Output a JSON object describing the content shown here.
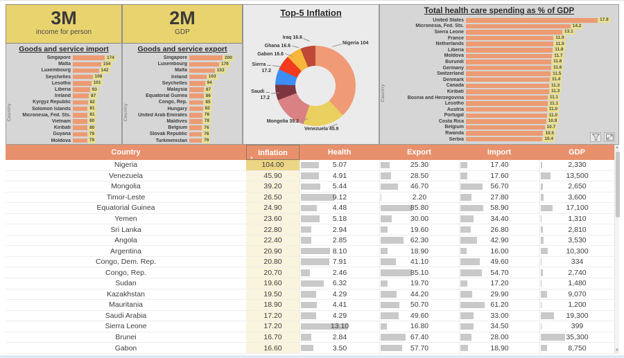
{
  "cards": [
    {
      "value": "3M",
      "label": "income for person"
    },
    {
      "value": "2M",
      "label": "GDP"
    }
  ],
  "chart_data": [
    {
      "id": "goods-import",
      "type": "bar",
      "title": "Goods and service import",
      "ylabel": "Country",
      "categories": [
        "Singapore",
        "Malta",
        "Luxembourg",
        "Seychelles",
        "Lesotho",
        "Liberia",
        "Ireland",
        "Kyrgyz Republic",
        "Solomon Islands",
        "Micronesia, Fed. Sts.",
        "Vietnam",
        "Kiribati",
        "Guyana",
        "Moldova"
      ],
      "values": [
        174,
        154,
        142,
        108,
        101,
        93,
        87,
        82,
        81,
        81,
        80,
        80,
        79,
        79
      ],
      "xmax": 174,
      "bar_color": "#ec9b72"
    },
    {
      "id": "goods-export",
      "type": "bar",
      "title": "Goods and service export",
      "ylabel": "Country",
      "categories": [
        "Singapore",
        "Luxembourg",
        "Malta",
        "Ireland",
        "Seychelles",
        "Malaysia",
        "Equatorial Guinea",
        "Congo, Rep.",
        "Hungary",
        "United Arab Emirates",
        "Maldives",
        "Belgium",
        "Slovak Republic",
        "Turkmenistan"
      ],
      "values": [
        200,
        179,
        153,
        103,
        94,
        87,
        86,
        85,
        82,
        78,
        78,
        76,
        76,
        76
      ],
      "xmax": 200,
      "bar_color": "#ec9b72"
    },
    {
      "id": "top5-inflation",
      "type": "pie",
      "title": "Top-5 Inflation",
      "slices": [
        {
          "label": "Nigeria",
          "value": 104,
          "color": "#f09b75"
        },
        {
          "label": "Venezuela",
          "value": 45.9,
          "color": "#ead05e"
        },
        {
          "label": "Mongolia",
          "value": 39.2,
          "color": "#da8183"
        },
        {
          "label": "Saudi",
          "value": 17.2,
          "color": "#7d3540"
        },
        {
          "label": "Sierra",
          "value": 17.2,
          "color": "#3d8df2"
        },
        {
          "label": "Gabon",
          "value": 16.6,
          "color": "#f13a1e"
        },
        {
          "label": "Ghana",
          "value": 16.6,
          "color": "#f6b73a"
        },
        {
          "label": "Iraq",
          "value": 16.6,
          "color": "#bf4936"
        }
      ],
      "callouts": [
        "Iraq 16.6",
        "Ghana 16.6",
        "Gabon 16.6",
        "Sierra ...",
        "17.2",
        "Saudi ...",
        "17.2",
        "Mongolia 39.2",
        "Venezuela 45.9",
        "Nigeria 104"
      ]
    },
    {
      "id": "healthcare-spending",
      "type": "bar",
      "title": "Total health care spending as % of GDP",
      "ylabel": "Country",
      "categories": [
        "United States",
        "Micronesia, Fed. Sts.",
        "Sierra Leone",
        "France",
        "Netherlands",
        "Liberia",
        "Moldova",
        "Burundi",
        "Germany",
        "Switzerland",
        "Denmark",
        "Canada",
        "Kiribati",
        "Bosnia and Herzegovina",
        "Lesotho",
        "Austria",
        "Portugal",
        "Costa Rica",
        "Belgium",
        "Rwanda",
        "Serbia"
      ],
      "values": [
        17.9,
        14.2,
        13.1,
        11.9,
        11.9,
        11.8,
        11.7,
        11.6,
        11.6,
        11.5,
        11.4,
        11.3,
        11.3,
        11.1,
        11.1,
        11.0,
        11.0,
        10.9,
        10.7,
        10.5,
        10.4
      ],
      "xmax": 17.9,
      "bar_color": "#ec9b72"
    },
    {
      "id": "country-table",
      "type": "table",
      "columns": [
        "Country",
        "Inflation",
        "Health",
        "Export",
        "Import",
        "GDP"
      ],
      "sorted_column": "Inflation",
      "bar_max": {
        "health": 13.1,
        "export": 85.8,
        "import": 61.2,
        "gdp": 35300
      },
      "rows": [
        [
          "Nigeria",
          104.0,
          5.07,
          25.3,
          17.4,
          2330
        ],
        [
          "Venezuela",
          45.9,
          4.91,
          28.5,
          17.6,
          13500
        ],
        [
          "Mongolia",
          39.2,
          5.44,
          46.7,
          56.7,
          2650
        ],
        [
          "Timor-Leste",
          26.5,
          9.12,
          2.2,
          27.8,
          3600
        ],
        [
          "Equatorial Guinea",
          24.9,
          4.48,
          85.8,
          58.9,
          17100
        ],
        [
          "Yemen",
          23.6,
          5.18,
          30.0,
          34.4,
          1310
        ],
        [
          "Sri Lanka",
          22.8,
          2.94,
          19.6,
          26.8,
          2810
        ],
        [
          "Angola",
          22.4,
          2.85,
          62.3,
          42.9,
          3530
        ],
        [
          "Argentina",
          20.9,
          8.1,
          18.9,
          16.0,
          10300
        ],
        [
          "Congo, Dem. Rep.",
          20.8,
          7.91,
          41.1,
          49.6,
          334
        ],
        [
          "Congo, Rep.",
          20.7,
          2.46,
          85.1,
          54.7,
          2740
        ],
        [
          "Sudan",
          19.6,
          6.32,
          19.7,
          17.2,
          1480
        ],
        [
          "Kazakhstan",
          19.5,
          4.29,
          44.2,
          29.9,
          9070
        ],
        [
          "Mauritania",
          18.9,
          4.41,
          50.7,
          61.2,
          1200
        ],
        [
          "Saudi Arabia",
          17.2,
          4.29,
          49.6,
          33.0,
          19300
        ],
        [
          "Sierra Leone",
          17.2,
          13.1,
          16.8,
          34.5,
          399
        ],
        [
          "Brunei",
          16.7,
          2.84,
          67.4,
          28.0,
          35300
        ],
        [
          "Gabon",
          16.6,
          3.5,
          57.7,
          18.9,
          8750
        ]
      ]
    }
  ],
  "icons": {
    "sort_arrow": "▼",
    "scroll_up": "▲",
    "scroll_down": "▼",
    "filter": "funnel",
    "expand": "fullscreen"
  },
  "colors": {
    "header_salmon": "#e8906c",
    "bar_salmon": "#ec9b72",
    "card_yellow": "#e9d36e",
    "value_chip": "#eae08d",
    "inflation_col_bg": "#faf3dd",
    "inflation_top_bg": "#ecd584",
    "table_bar_gray": "#c9c9c9"
  }
}
